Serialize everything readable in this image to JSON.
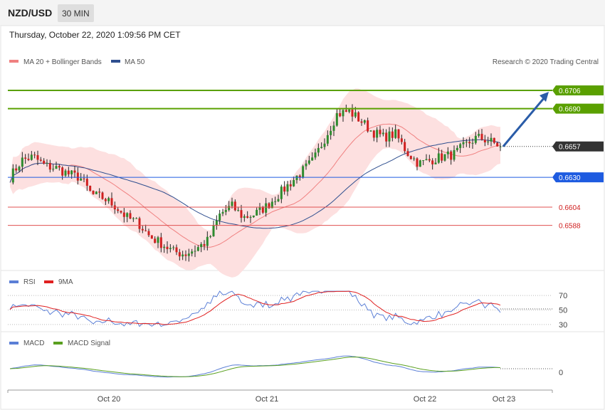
{
  "header": {
    "symbol": "NZD/USD",
    "timeframe": "30 MIN",
    "datetime": "Thursday, October 22, 2020 1:09:56 PM CET",
    "credit": "Research © 2020 Trading Central"
  },
  "legends": {
    "price": [
      {
        "label": "MA 20 + Bollinger Bands",
        "color": "#f08080"
      },
      {
        "label": "MA 50",
        "color": "#2f4f8f"
      }
    ],
    "rsi": [
      {
        "label": "RSI",
        "color": "#5b7fd6"
      },
      {
        "label": "9MA",
        "color": "#e02020"
      }
    ],
    "macd": [
      {
        "label": "MACD",
        "color": "#5b7fd6"
      },
      {
        "label": "MACD Signal",
        "color": "#5aa020"
      }
    ]
  },
  "colors": {
    "resistance": "#5aa000",
    "pivot": "#1e5be0",
    "support": "#e05050",
    "support_text": "#d02020",
    "current": "#333333",
    "band_fill": "#fde0e0",
    "candle_up": "#2e8b2e",
    "candle_down": "#d02020",
    "arrow": "#2a5ca8"
  },
  "chart_data": {
    "type": "candlestick",
    "x_labels": [
      "Oct 20",
      "Oct 21",
      "Oct 22",
      "Oct 23"
    ],
    "y_range": [
      0.6548,
      0.6724
    ],
    "price_levels": [
      {
        "value": 0.6706,
        "label": "0.6706",
        "kind": "resistance"
      },
      {
        "value": 0.669,
        "label": "0.6690",
        "kind": "resistance"
      },
      {
        "value": 0.6657,
        "label": "0.6657",
        "kind": "current"
      },
      {
        "value": 0.663,
        "label": "0.6630",
        "kind": "pivot"
      },
      {
        "value": 0.6604,
        "label": "0.6604",
        "kind": "support"
      },
      {
        "value": 0.6588,
        "label": "0.6588",
        "kind": "support"
      }
    ],
    "close_path": [
      0.663,
      0.6645,
      0.6648,
      0.664,
      0.6638,
      0.6633,
      0.663,
      0.6615,
      0.6612,
      0.6605,
      0.6595,
      0.659,
      0.6578,
      0.6572,
      0.6565,
      0.6563,
      0.6568,
      0.6575,
      0.6598,
      0.6605,
      0.6595,
      0.6598,
      0.6605,
      0.6615,
      0.6625,
      0.6635,
      0.6645,
      0.6665,
      0.6685,
      0.6688,
      0.668,
      0.667,
      0.6665,
      0.6668,
      0.6652,
      0.6642,
      0.6645,
      0.6648,
      0.665,
      0.6658,
      0.6665,
      0.6662,
      0.6657
    ],
    "resistance_target": 0.6706,
    "rsi": {
      "levels": [
        30,
        50,
        70
      ],
      "range": [
        20,
        80
      ]
    },
    "macd": {
      "levels": [
        0
      ]
    }
  }
}
